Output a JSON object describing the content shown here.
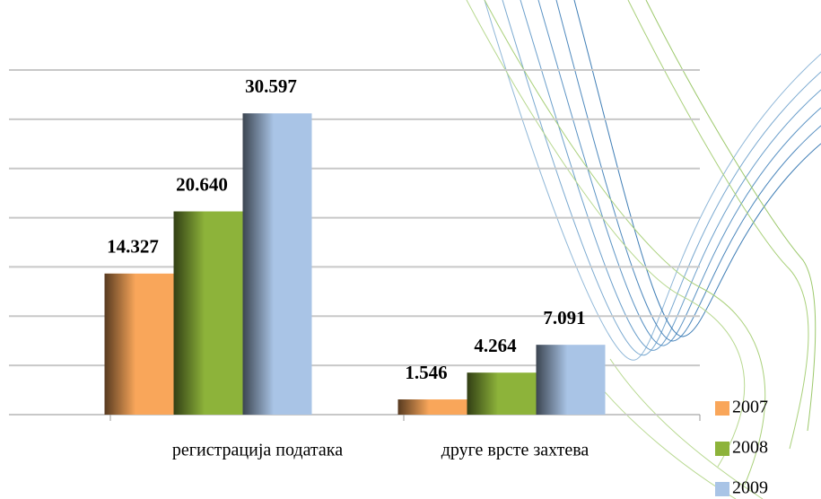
{
  "chart_data": {
    "type": "bar",
    "categories": [
      "регистрација података",
      "друге врсте захтева"
    ],
    "series": [
      {
        "name": "2007",
        "color": "#f9a65a",
        "values": [
          14327,
          1546
        ],
        "value_labels": [
          "14.327",
          "1.546"
        ]
      },
      {
        "name": "2008",
        "color": "#8db33a",
        "values": [
          20640,
          4264
        ],
        "value_labels": [
          "20.640",
          "4.264"
        ]
      },
      {
        "name": "2009",
        "color": "#a9c4e6",
        "values": [
          30597,
          7091
        ],
        "value_labels": [
          "30.597",
          "7.091"
        ]
      }
    ],
    "ylim": [
      0,
      35000
    ],
    "yticks": [
      0,
      5000,
      10000,
      15000,
      20000,
      25000,
      30000,
      35000
    ],
    "grid": true
  }
}
